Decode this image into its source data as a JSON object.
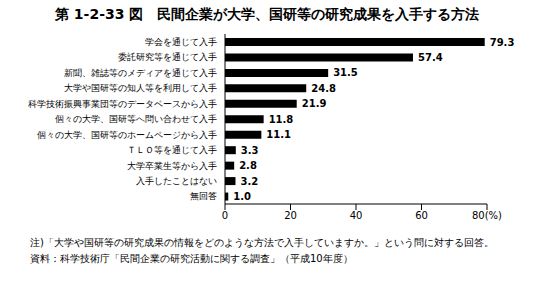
{
  "chart_data": {
    "type": "bar",
    "title": "第 1-2-33 図　民間企業が大学、国研等の研究成果を入手する方法",
    "orientation": "horizontal",
    "categories": [
      "学会を通じて入手",
      "委託研究等を通じて入手",
      "新聞、雑誌等のメディアを通じて入手",
      "大学や国研等の知人等を利用して入手",
      "科学技術振興事業団等のデータベースから入手",
      "個々の大学、国研等へ問い合わせて入手",
      "個々の大学、国研等のホームページから入手",
      "ＴＬＯ等を通じて入手",
      "大学卒業生等から入手",
      "入手したことはない",
      "無回答"
    ],
    "values": [
      79.3,
      57.4,
      31.5,
      24.8,
      21.9,
      11.8,
      11.1,
      3.3,
      2.8,
      3.2,
      1.0
    ],
    "value_labels": [
      "79.3",
      "57.4",
      "31.5",
      "24.8",
      "21.9",
      "11.8",
      "11.1",
      "3.3",
      "2.8",
      "3.2",
      "1.0"
    ],
    "color": "#000000",
    "xlim": [
      0,
      80
    ],
    "xticks": [
      0,
      20,
      40,
      60,
      {
        "value": 80,
        "label": "80(%)"
      }
    ],
    "data_labels": true,
    "grid": false,
    "annotations": [
      "注)「大学や国研等の研究成果の情報をどのような方法で入手していますか。」という問に対する回答。",
      "資料：科学技術庁「民間企業の研究活動に関する調査」（平成10年度）"
    ]
  }
}
